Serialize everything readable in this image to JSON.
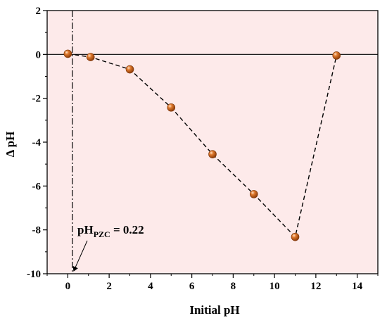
{
  "chart_data": {
    "type": "scatter",
    "xlabel": "Initial pH",
    "ylabel": "Δ pH",
    "xlim": [
      -1,
      15
    ],
    "ylim": [
      -10,
      2
    ],
    "xticks": [
      "0",
      "2",
      "4",
      "6",
      "8",
      "10",
      "12",
      "14"
    ],
    "yticks": [
      "2",
      "0",
      "-2",
      "-4",
      "-6",
      "-8",
      "-10"
    ],
    "series": [
      {
        "x": [
          0.0,
          1.1,
          3.0,
          5.0,
          7.0,
          9.0,
          11.0,
          13.0
        ],
        "y": [
          0.03,
          -0.12,
          -0.68,
          -2.42,
          -4.55,
          -6.37,
          -8.32,
          -0.05
        ]
      }
    ],
    "pzc": 0.22,
    "annotation": {
      "prefix": "pH",
      "subscript": "PZC",
      "suffix": " = 0.22"
    },
    "grid": false,
    "colors": {
      "background": "#fdeaea",
      "marker": "#d2691e",
      "line": "#000000"
    }
  }
}
